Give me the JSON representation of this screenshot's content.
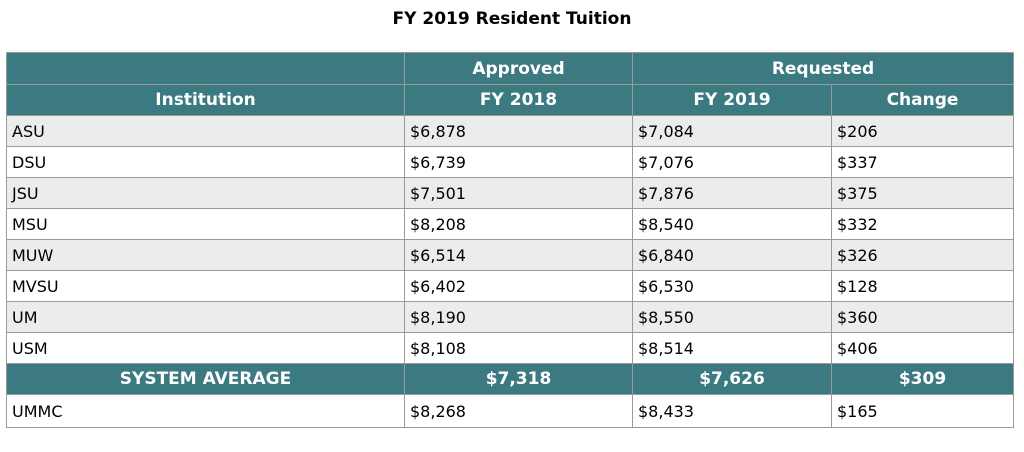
{
  "title": "FY 2019 Resident Tuition",
  "header": {
    "group_approved": "Approved",
    "group_requested": "Requested",
    "col_institution": "Institution",
    "col_fy2018": "FY 2018",
    "col_fy2019": "FY 2019",
    "col_change": "Change"
  },
  "rows": [
    {
      "institution": "ASU",
      "fy2018": "$6,878",
      "fy2019": "$7,084",
      "change": "$206"
    },
    {
      "institution": "DSU",
      "fy2018": "$6,739",
      "fy2019": "$7,076",
      "change": "$337"
    },
    {
      "institution": "JSU",
      "fy2018": "$7,501",
      "fy2019": "$7,876",
      "change": "$375"
    },
    {
      "institution": "MSU",
      "fy2018": "$8,208",
      "fy2019": "$8,540",
      "change": "$332"
    },
    {
      "institution": "MUW",
      "fy2018": "$6,514",
      "fy2019": "$6,840",
      "change": "$326"
    },
    {
      "institution": "MVSU",
      "fy2018": "$6,402",
      "fy2019": "$6,530",
      "change": "$128"
    },
    {
      "institution": "UM",
      "fy2018": "$8,190",
      "fy2019": "$8,550",
      "change": "$360"
    },
    {
      "institution": "USM",
      "fy2018": "$8,108",
      "fy2019": "$8,514",
      "change": "$406"
    }
  ],
  "system_average": {
    "label": "SYSTEM AVERAGE",
    "fy2018": "$7,318",
    "fy2019": "$7,626",
    "change": "$309"
  },
  "ummc": {
    "institution": "UMMC",
    "fy2018": "$8,268",
    "fy2019": "$8,433",
    "change": "$165"
  },
  "colors": {
    "header_bg": "#3a7a80",
    "stripe_bg": "#ececec",
    "border": "#9a9a9a"
  }
}
